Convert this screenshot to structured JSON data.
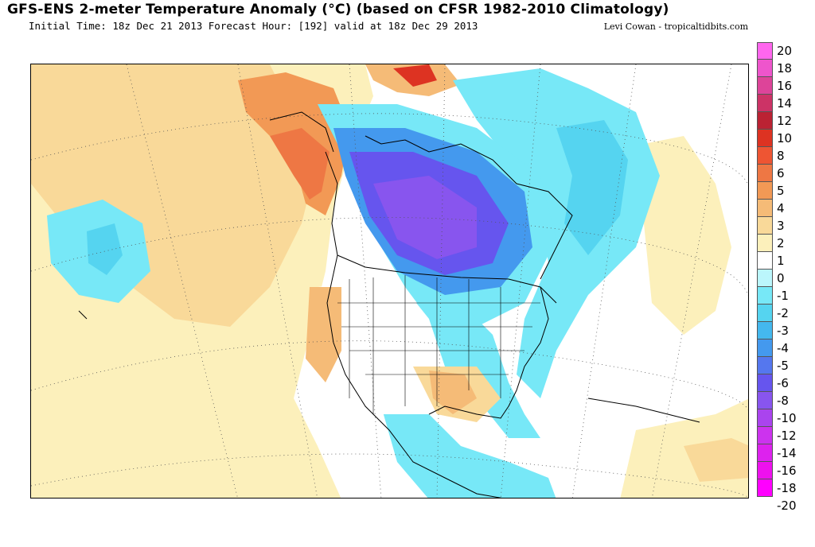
{
  "header": {
    "title": "GFS-ENS 2-meter Temperature Anomaly (°C) (based on CFSR 1982-2010 Climatology)",
    "subtitle": "Initial Time: 18z Dec 21 2013 Forecast Hour: [192] valid at 18z Dec 29 2013",
    "credit": "Levi Cowan - tropicaltidbits.com"
  },
  "colorbar": {
    "labels": [
      "20",
      "18",
      "16",
      "14",
      "12",
      "10",
      "8",
      "6",
      "5",
      "4",
      "3",
      "2",
      "1",
      "0",
      "-1",
      "-2",
      "-3",
      "-4",
      "-5",
      "-6",
      "-8",
      "-10",
      "-12",
      "-14",
      "-16",
      "-18",
      "-20"
    ],
    "colors": [
      "#ff66ee",
      "#ee55cc",
      "#dd4499",
      "#cc3366",
      "#bb2233",
      "#dd3322",
      "#ee5533",
      "#ee7744",
      "#f29955",
      "#f5bb77",
      "#f9d999",
      "#fcf0bb",
      "#ffffff",
      "#bbf6fc",
      "#77e8f7",
      "#55d4f0",
      "#44b8ee",
      "#4499ee",
      "#5577ee",
      "#6655ee",
      "#8855ee",
      "#aa44ee",
      "#cc33ee",
      "#dd22ee",
      "#ee11ee",
      "#ff00ff"
    ],
    "units": "°C"
  },
  "map": {
    "region": "North America",
    "variable": "2-meter temperature anomaly"
  }
}
